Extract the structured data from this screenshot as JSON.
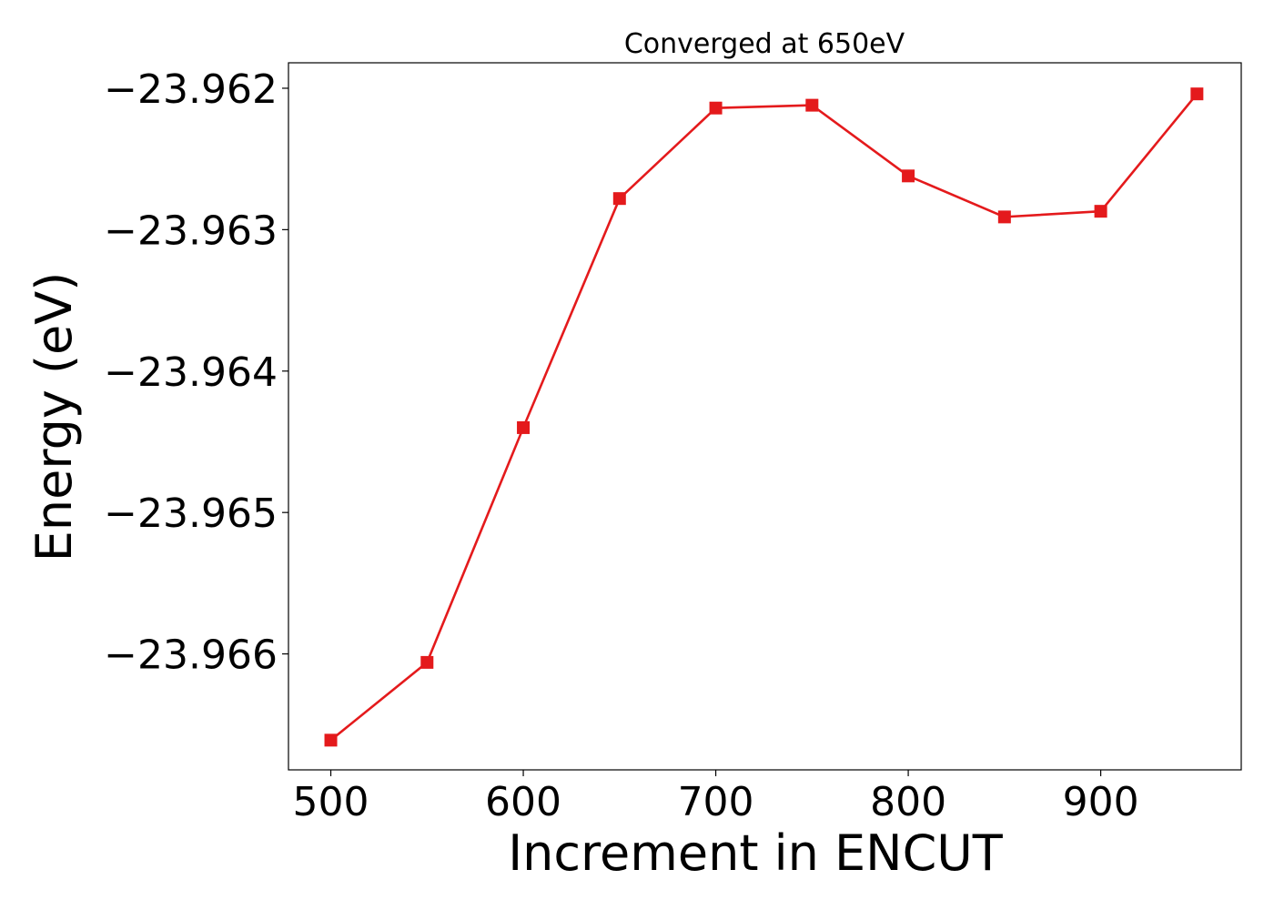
{
  "chart_data": {
    "type": "line",
    "title": "Converged at 650eV",
    "xlabel": "Increment in ENCUT",
    "ylabel": "Energy (eV)",
    "x": [
      500,
      550,
      600,
      650,
      700,
      750,
      800,
      850,
      900,
      950
    ],
    "series": [
      {
        "values": [
          -23.96661,
          -23.96606,
          -23.9644,
          -23.96278,
          -23.96214,
          -23.96212,
          -23.96262,
          -23.96291,
          -23.96287,
          -23.96204
        ],
        "color": "#e41a1c",
        "marker": "square"
      }
    ],
    "xlim": [
      478,
      973
    ],
    "ylim": [
      -23.96682,
      -23.96182
    ],
    "xticks": [
      500,
      600,
      700,
      800,
      900
    ],
    "xtick_labels": [
      "500",
      "600",
      "700",
      "800",
      "900"
    ],
    "yticks": [
      -23.962,
      -23.963,
      -23.964,
      -23.965,
      -23.966
    ],
    "ytick_labels": [
      "−23.962",
      "−23.963",
      "−23.964",
      "−23.965",
      "−23.966"
    ],
    "grid": false,
    "legend": "none"
  }
}
